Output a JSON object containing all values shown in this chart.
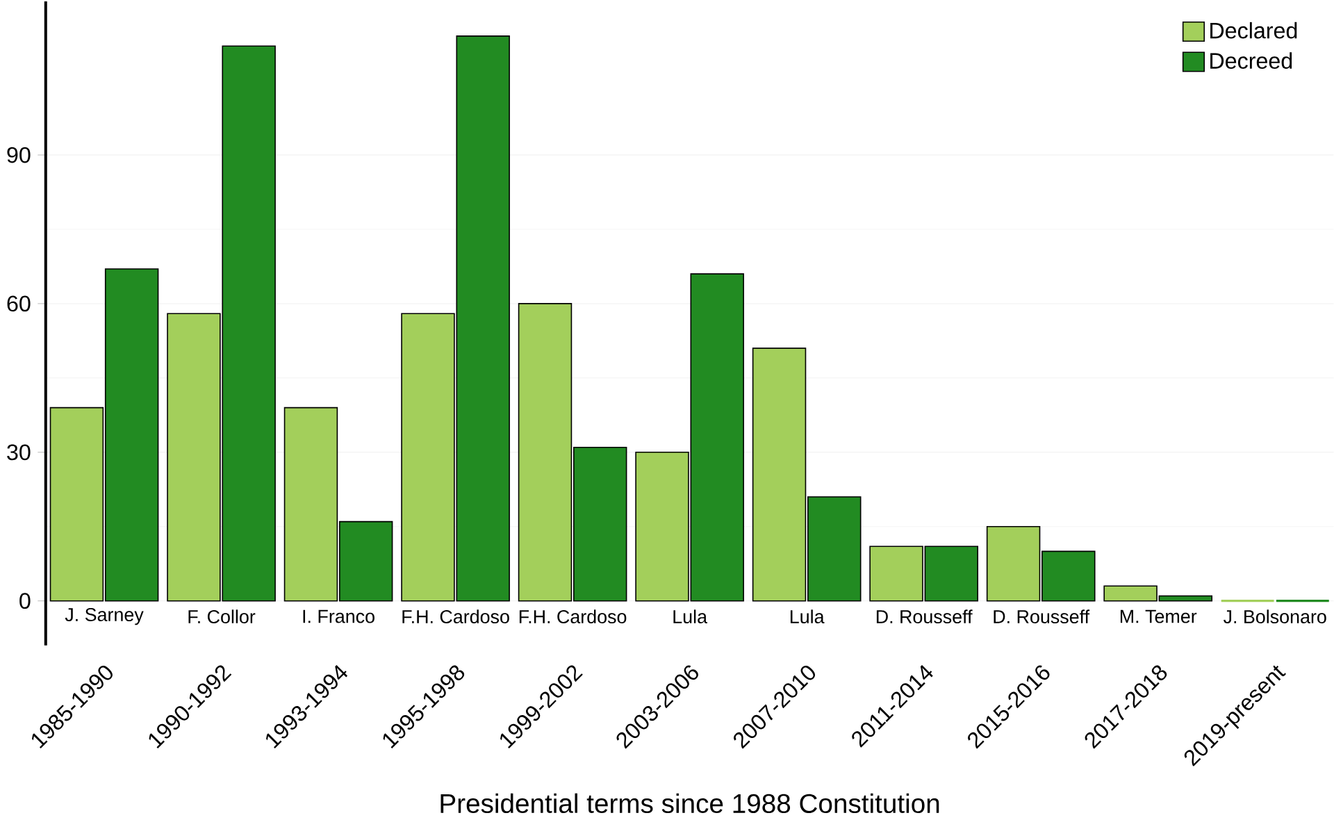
{
  "chart_data": {
    "type": "bar",
    "xlabel": "Presidential terms since 1988 Constitution",
    "categories": [
      "1985-1990",
      "1990-1992",
      "1993-1994",
      "1995-1998",
      "1999-2002",
      "2003-2006",
      "2007-2010",
      "2011-2014",
      "2015-2016",
      "2017-2018",
      "2019-present"
    ],
    "series": [
      {
        "name": "Declared",
        "color": "#a3cf5b",
        "values": [
          39,
          58,
          39,
          58,
          60,
          30,
          51,
          11,
          15,
          3,
          0
        ]
      },
      {
        "name": "Decreed",
        "color": "#228b22",
        "values": [
          67,
          112,
          16,
          114,
          31,
          66,
          21,
          11,
          10,
          1,
          0
        ]
      }
    ],
    "ylim": [
      -9,
      121
    ],
    "yticks": [
      0,
      30,
      60,
      90
    ],
    "grid": "y",
    "legend": "top right",
    "annotations": [
      "J. Sarney",
      "F. Collor",
      "I. Franco",
      "F.H. Cardoso",
      "F.H. Cardoso",
      "Lula",
      "Lula",
      "D. Rousseff",
      "D. Rousseff",
      "M. Temer",
      "J. Bolsonaro"
    ]
  }
}
